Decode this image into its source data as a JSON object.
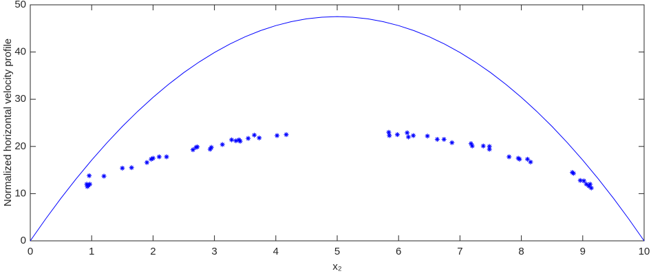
{
  "chart_data": {
    "type": "line",
    "xlabel": "x₂",
    "ylabel": "Normalized horizontal velocity profile",
    "xlim": [
      0,
      10
    ],
    "xticks": [
      0,
      1,
      2,
      3,
      4,
      5,
      6,
      7,
      8,
      9,
      10
    ],
    "ylim": [
      0,
      50
    ],
    "yticks": [
      0,
      10,
      20,
      30,
      40,
      50
    ],
    "grid": false,
    "series": [
      {
        "type": "line",
        "color": "#0000ff",
        "x": [
          0,
          0.25,
          0.5,
          0.75,
          1,
          1.25,
          1.5,
          1.75,
          2,
          2.25,
          2.5,
          2.75,
          3,
          3.25,
          3.5,
          3.75,
          4,
          4.25,
          4.5,
          4.75,
          5,
          5.25,
          5.5,
          5.75,
          6,
          6.25,
          6.5,
          6.75,
          7,
          7.25,
          7.5,
          7.75,
          8,
          8.25,
          8.5,
          8.75,
          9,
          9.25,
          9.5,
          9.75,
          10
        ],
        "values": [
          0,
          4.63,
          9.03,
          13.18,
          17.1,
          20.78,
          24.23,
          27.43,
          30.4,
          33.13,
          35.63,
          37.88,
          39.9,
          41.68,
          43.23,
          44.53,
          45.6,
          46.43,
          47.03,
          47.38,
          47.5,
          47.38,
          47.03,
          46.43,
          45.6,
          44.53,
          43.23,
          41.68,
          39.9,
          37.88,
          35.63,
          33.13,
          30.4,
          27.43,
          24.23,
          20.78,
          17.1,
          13.18,
          9.03,
          4.63,
          0
        ]
      },
      {
        "type": "scatter",
        "color": "#0000ff",
        "marker": "*",
        "x": [
          0.93,
          0.95,
          0.92,
          0.97,
          0.96,
          1.2,
          1.5,
          1.65,
          1.9,
          1.97,
          2.0,
          2.1,
          2.22,
          2.65,
          2.7,
          2.72,
          2.93,
          2.95,
          3.13,
          3.28,
          3.35,
          3.4,
          3.42,
          3.55,
          3.65,
          3.73,
          4.02,
          4.17,
          5.84,
          5.85,
          5.98,
          6.14,
          6.16,
          6.24,
          6.47,
          6.63,
          6.74,
          6.87,
          7.18,
          7.2,
          7.38,
          7.48,
          7.48,
          7.8,
          7.95,
          7.97,
          8.1,
          8.15,
          8.83,
          8.85,
          8.96,
          9.02,
          9.06,
          9.1,
          9.12,
          9.14
        ],
        "values": [
          11.5,
          11.8,
          12,
          12,
          13.8,
          13.7,
          15.4,
          15.5,
          16.6,
          17.3,
          17.5,
          17.8,
          17.8,
          19.3,
          19.8,
          19.9,
          19.4,
          19.8,
          20.4,
          21.4,
          21.2,
          21.4,
          21.1,
          21.7,
          22.4,
          21.8,
          22.3,
          22.5,
          23,
          22.3,
          22.5,
          22.9,
          22,
          22.3,
          22.2,
          21.5,
          21.5,
          20.8,
          20.6,
          20.1,
          20.1,
          19.4,
          20,
          17.8,
          17.5,
          17.3,
          17.3,
          16.7,
          14.5,
          14.3,
          12.8,
          12.7,
          12,
          11.6,
          12,
          11.2
        ]
      }
    ]
  }
}
